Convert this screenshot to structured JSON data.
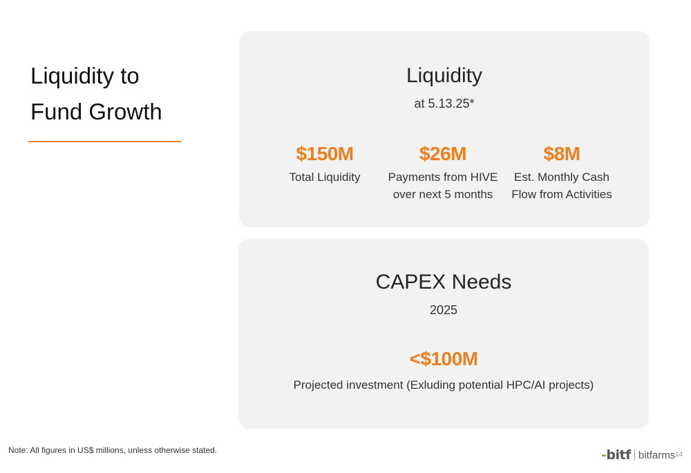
{
  "slide": {
    "title_line1": "Liquidity to",
    "title_line2": "Fund Growth",
    "accent_color": "#f07f1b"
  },
  "liquidity": {
    "heading": "Liquidity",
    "subheading": "at 5.13.25*",
    "metrics": [
      {
        "value": "$150M",
        "label_line1": "Total Liquidity",
        "label_line2": ""
      },
      {
        "value": "$26M",
        "label_line1": "Payments from HIVE",
        "label_line2": "over next 5 months"
      },
      {
        "value": "$8M",
        "label_line1": "Est. Monthly Cash",
        "label_line2": "Flow from Activities"
      }
    ]
  },
  "capex": {
    "heading": "CAPEX Needs",
    "subheading": "2025",
    "value": "<$100M",
    "label": "Projected investment (Exluding potential HPC/AI projects)"
  },
  "footer": {
    "note": "Note: All figures in US$ millions, unless otherwise stated.",
    "logo_mark": "bitf",
    "logo_word": "bitfarms",
    "page_number": "14"
  }
}
